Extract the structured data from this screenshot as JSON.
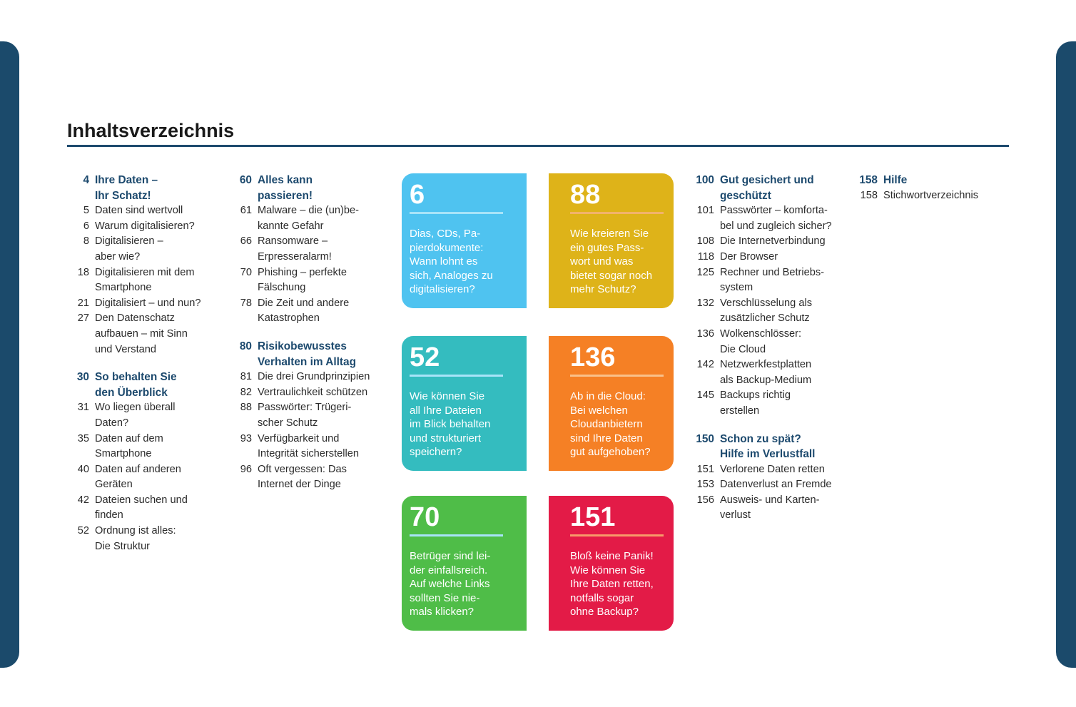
{
  "title": "Inhaltsverzeichnis",
  "columns": [
    [
      {
        "num": "4",
        "title": "Ihre Daten –\nIhr Schatz!",
        "items": [
          [
            "5",
            "Daten sind wertvoll"
          ],
          [
            "6",
            "Warum digitalisieren?"
          ],
          [
            "8",
            "Digitalisieren –\naber wie?"
          ],
          [
            "18",
            "Digitalisieren mit dem\nSmartphone"
          ],
          [
            "21",
            "Digitalisiert – und nun?"
          ],
          [
            "27",
            "Den Datenschatz\naufbauen – mit Sinn\nund Verstand"
          ]
        ]
      },
      {
        "num": "30",
        "title": "So behalten Sie\nden Überblick",
        "items": [
          [
            "31",
            "Wo liegen überall\nDaten?"
          ],
          [
            "35",
            "Daten auf dem\nSmartphone"
          ],
          [
            "40",
            "Daten auf anderen\nGeräten"
          ],
          [
            "42",
            "Dateien suchen und\nfinden"
          ],
          [
            "52",
            "Ordnung ist alles:\nDie Struktur"
          ]
        ]
      }
    ],
    [
      {
        "num": "60",
        "title": "Alles kann\npassieren!",
        "items": [
          [
            "61",
            "Malware – die (un)be-\nkannte Gefahr"
          ],
          [
            "66",
            "Ransomware –\nErpresseralarm!"
          ],
          [
            "70",
            "Phishing – perfekte\nFälschung"
          ],
          [
            "78",
            "Die Zeit und andere\nKatastrophen"
          ]
        ]
      },
      {
        "num": "80",
        "title": "Risikobewusstes\nVerhalten im Alltag",
        "items": [
          [
            "81",
            "Die drei Grundprinzipien"
          ],
          [
            "82",
            "Vertraulichkeit schützen"
          ],
          [
            "88",
            "Passwörter: Trügeri-\nscher Schutz"
          ],
          [
            "93",
            "Verfügbarkeit und\nIntegrität sicherstellen"
          ],
          [
            "96",
            "Oft vergessen: Das\nInternet der Dinge"
          ]
        ]
      }
    ],
    [
      {
        "num": "100",
        "title": "Gut gesichert und\ngeschützt",
        "items": [
          [
            "101",
            "Passwörter – komforta-\nbel und zugleich sicher?"
          ],
          [
            "108",
            "Die Internetverbindung"
          ],
          [
            "118",
            "Der Browser"
          ],
          [
            "125",
            "Rechner und Betriebs-\nsystem"
          ],
          [
            "132",
            "Verschlüsselung als\nzusätzlicher Schutz"
          ],
          [
            "136",
            "Wolkenschlösser:\nDie Cloud"
          ],
          [
            "142",
            "Netzwerkfestplatten\nals Backup-Medium"
          ],
          [
            "145",
            "Backups richtig\nerstellen"
          ]
        ]
      },
      {
        "num": "150",
        "title": "Schon zu spät?\nHilfe im Verlustfall",
        "items": [
          [
            "151",
            "Verlorene Daten retten"
          ],
          [
            "153",
            "Datenverlust an Fremde"
          ],
          [
            "156",
            "Ausweis- und Karten-\nverlust"
          ]
        ]
      }
    ],
    [
      {
        "num": "158",
        "title": "Hilfe",
        "items": [
          [
            "158",
            "Stichwortverzeichnis"
          ]
        ]
      }
    ]
  ],
  "cards": [
    {
      "num": "6",
      "text": "Dias, CDs, Pa-\npierdokumente:\nWann lohnt es\nsich, Analoges zu\ndigitalisieren?",
      "color": "#4fc3f0",
      "line": "#a8e4f8"
    },
    {
      "num": "88",
      "text": "Wie kreieren Sie\nein gutes Pass-\nwort und was\nbietet sogar noch\nmehr Schutz?",
      "color": "#deb319",
      "line": "#f2b36a"
    },
    {
      "num": "52",
      "text": "Wie können Sie\nall Ihre Dateien\nim Blick behalten\nund strukturiert\nspeichern?",
      "color": "#34bcbf",
      "line": "#a8e4f8"
    },
    {
      "num": "136",
      "text": "Ab in die Cloud:\nBei welchen\nCloudanbietern\nsind Ihre Daten\ngut aufgehoben?",
      "color": "#f58025",
      "line": "#f9c08a"
    },
    {
      "num": "70",
      "text": "Betrüger sind lei-\nder einfallsreich.\nAuf welche Links\nsollten Sie nie-\nmals klicken?",
      "color": "#4fbd48",
      "line": "#a8e4f8"
    },
    {
      "num": "151",
      "text": "Bloß keine Panik!\nWie können Sie\nIhre Daten retten,\nnotfalls sogar\nohne Backup?",
      "color": "#e31b47",
      "line": "#f79a6a"
    }
  ]
}
